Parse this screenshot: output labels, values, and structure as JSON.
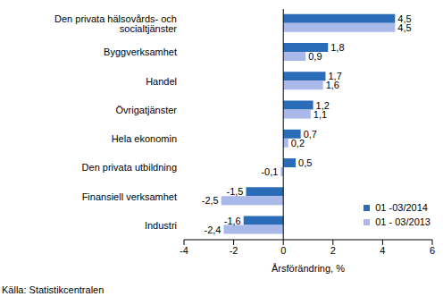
{
  "chart_data": {
    "type": "bar",
    "orientation": "horizontal",
    "categories": [
      "Den privata hälsovårds- och socialtjänster",
      "Byggverksamhet",
      "Handel",
      "Övrigatjänster",
      "Hela ekonomin",
      "Den privata utbildning",
      "Finansiell verksamhet",
      "Industri"
    ],
    "series": [
      {
        "name": "01 -03/2014",
        "color": "#2b6cb8",
        "values": [
          4.5,
          1.8,
          1.7,
          1.2,
          0.7,
          0.5,
          -1.5,
          -1.6
        ],
        "value_labels": [
          "4,5",
          "1,8",
          "1,7",
          "1,2",
          "0,7",
          "0,5",
          "-1,5",
          "-1,6"
        ]
      },
      {
        "name": "01 - 03/2013",
        "color": "#a9b9ea",
        "values": [
          4.5,
          0.9,
          1.6,
          1.1,
          0.2,
          -0.1,
          -2.5,
          -2.4
        ],
        "value_labels": [
          "4,5",
          "0,9",
          "1,6",
          "1,1",
          "0,2",
          "-0,1",
          "-2,5",
          "-2,4"
        ]
      }
    ],
    "x_label": "Årsförändring, %",
    "xlim": [
      -4,
      6
    ],
    "xticks": [
      -4,
      -2,
      0,
      2,
      4,
      6
    ],
    "data_labels": true,
    "legend": "lower right",
    "grid": false,
    "annotations": [
      "Källa: Statistikcentralen"
    ]
  }
}
